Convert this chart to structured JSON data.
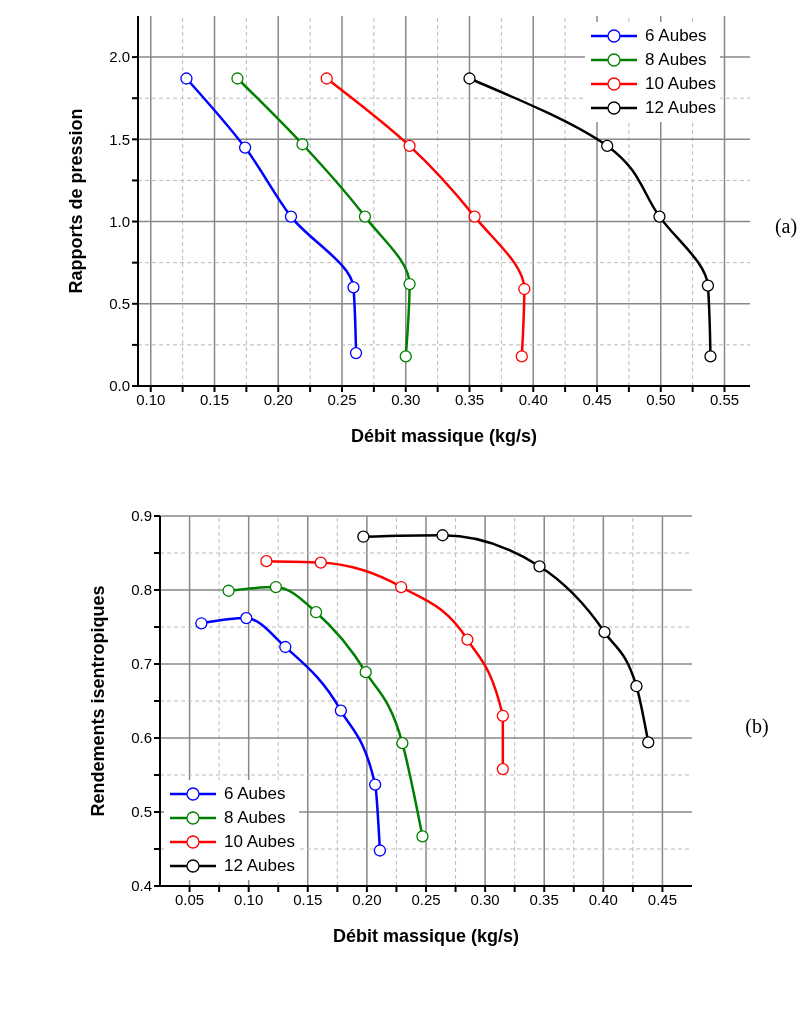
{
  "chart_data": [
    {
      "type": "line",
      "xlabel": "Débit massique (kg/s)",
      "ylabel": "Rapports de pression",
      "annotations": [
        "(a)"
      ],
      "legend": "top right",
      "grid": true,
      "marker": "circle",
      "line_style": "solid",
      "xlim": [
        0.09,
        0.57
      ],
      "ylim": [
        0,
        2.25
      ],
      "xticks": [
        {
          "value": 0.1,
          "label": "0.10"
        },
        {
          "value": 0.125,
          "label": null
        },
        {
          "value": 0.15,
          "label": "0.15"
        },
        {
          "value": 0.175,
          "label": null
        },
        {
          "value": 0.2,
          "label": "0.20"
        },
        {
          "value": 0.225,
          "label": null
        },
        {
          "value": 0.25,
          "label": "0.25"
        },
        {
          "value": 0.275,
          "label": null
        },
        {
          "value": 0.3,
          "label": "0.30"
        },
        {
          "value": 0.325,
          "label": null
        },
        {
          "value": 0.35,
          "label": "0.35"
        },
        {
          "value": 0.375,
          "label": null
        },
        {
          "value": 0.4,
          "label": "0.40"
        },
        {
          "value": 0.425,
          "label": null
        },
        {
          "value": 0.45,
          "label": "0.45"
        },
        {
          "value": 0.475,
          "label": null
        },
        {
          "value": 0.5,
          "label": "0.50"
        },
        {
          "value": 0.525,
          "label": null
        },
        {
          "value": 0.55,
          "label": "0.55"
        }
      ],
      "yticks": [
        {
          "value": 0,
          "label": "0.0"
        },
        {
          "value": 0.25,
          "label": null
        },
        {
          "value": 0.5,
          "label": "0.5"
        },
        {
          "value": 0.75,
          "label": null
        },
        {
          "value": 1,
          "label": "1.0"
        },
        {
          "value": 1.25,
          "label": null
        },
        {
          "value": 1.5,
          "label": "1.5"
        },
        {
          "value": 1.75,
          "label": null
        },
        {
          "value": 2,
          "label": "2.0"
        }
      ],
      "series": [
        {
          "name": "6 Aubes",
          "color": "#0000ff",
          "x": [
            0.128,
            0.174,
            0.21,
            0.259,
            0.261
          ],
          "values": [
            1.87,
            1.45,
            1.03,
            0.6,
            0.2
          ]
        },
        {
          "name": "8 Aubes",
          "color": "#008000",
          "x": [
            0.168,
            0.219,
            0.268,
            0.303,
            0.3
          ],
          "values": [
            1.87,
            1.47,
            1.03,
            0.62,
            0.18
          ]
        },
        {
          "name": "10 Aubes",
          "color": "#ff0000",
          "x": [
            0.238,
            0.303,
            0.354,
            0.393,
            0.391
          ],
          "values": [
            1.87,
            1.46,
            1.03,
            0.59,
            0.18
          ]
        },
        {
          "name": "12 Aubes",
          "color": "#000000",
          "x": [
            0.35,
            0.458,
            0.499,
            0.537,
            0.539
          ],
          "values": [
            1.87,
            1.46,
            1.03,
            0.61,
            0.18
          ]
        }
      ]
    },
    {
      "type": "line",
      "xlabel": "Débit massique (kg/s)",
      "ylabel": "Rendements isentropiques",
      "annotations": [
        "(b)"
      ],
      "legend": "bottom left",
      "grid": true,
      "marker": "circle",
      "line_style": "solid",
      "xlim": [
        0.025,
        0.475
      ],
      "ylim": [
        0.4,
        0.9
      ],
      "xticks": [
        {
          "value": 0.05,
          "label": "0.05"
        },
        {
          "value": 0.075,
          "label": null
        },
        {
          "value": 0.1,
          "label": "0.10"
        },
        {
          "value": 0.125,
          "label": null
        },
        {
          "value": 0.15,
          "label": "0.15"
        },
        {
          "value": 0.175,
          "label": null
        },
        {
          "value": 0.2,
          "label": "0.20"
        },
        {
          "value": 0.225,
          "label": null
        },
        {
          "value": 0.25,
          "label": "0.25"
        },
        {
          "value": 0.275,
          "label": null
        },
        {
          "value": 0.3,
          "label": "0.30"
        },
        {
          "value": 0.325,
          "label": null
        },
        {
          "value": 0.35,
          "label": "0.35"
        },
        {
          "value": 0.375,
          "label": null
        },
        {
          "value": 0.4,
          "label": "0.40"
        },
        {
          "value": 0.425,
          "label": null
        },
        {
          "value": 0.45,
          "label": "0.45"
        }
      ],
      "yticks": [
        0.4,
        {
          "value": 0.45,
          "label": null
        },
        0.5,
        {
          "value": 0.55,
          "label": null
        },
        0.6,
        {
          "value": 0.65,
          "label": null
        },
        0.7,
        {
          "value": 0.75,
          "label": null
        },
        0.8,
        {
          "value": 0.85,
          "label": null
        },
        0.9
      ],
      "series": [
        {
          "name": "6 Aubes",
          "color": "#0000ff",
          "x": [
            0.06,
            0.098,
            0.131,
            0.178,
            0.207,
            0.211
          ],
          "values": [
            0.755,
            0.762,
            0.723,
            0.637,
            0.537,
            0.448
          ]
        },
        {
          "name": "8 Aubes",
          "color": "#008000",
          "x": [
            0.083,
            0.123,
            0.157,
            0.199,
            0.23,
            0.247
          ],
          "values": [
            0.799,
            0.804,
            0.77,
            0.689,
            0.593,
            0.467
          ]
        },
        {
          "name": "10 Aubes",
          "color": "#ff0000",
          "x": [
            0.115,
            0.161,
            0.229,
            0.285,
            0.315,
            0.315
          ],
          "values": [
            0.839,
            0.837,
            0.804,
            0.733,
            0.63,
            0.558
          ]
        },
        {
          "name": "12 Aubes",
          "color": "#000000",
          "x": [
            0.197,
            0.264,
            0.346,
            0.401,
            0.428,
            0.438
          ],
          "values": [
            0.872,
            0.874,
            0.832,
            0.743,
            0.67,
            0.594
          ]
        }
      ]
    }
  ]
}
